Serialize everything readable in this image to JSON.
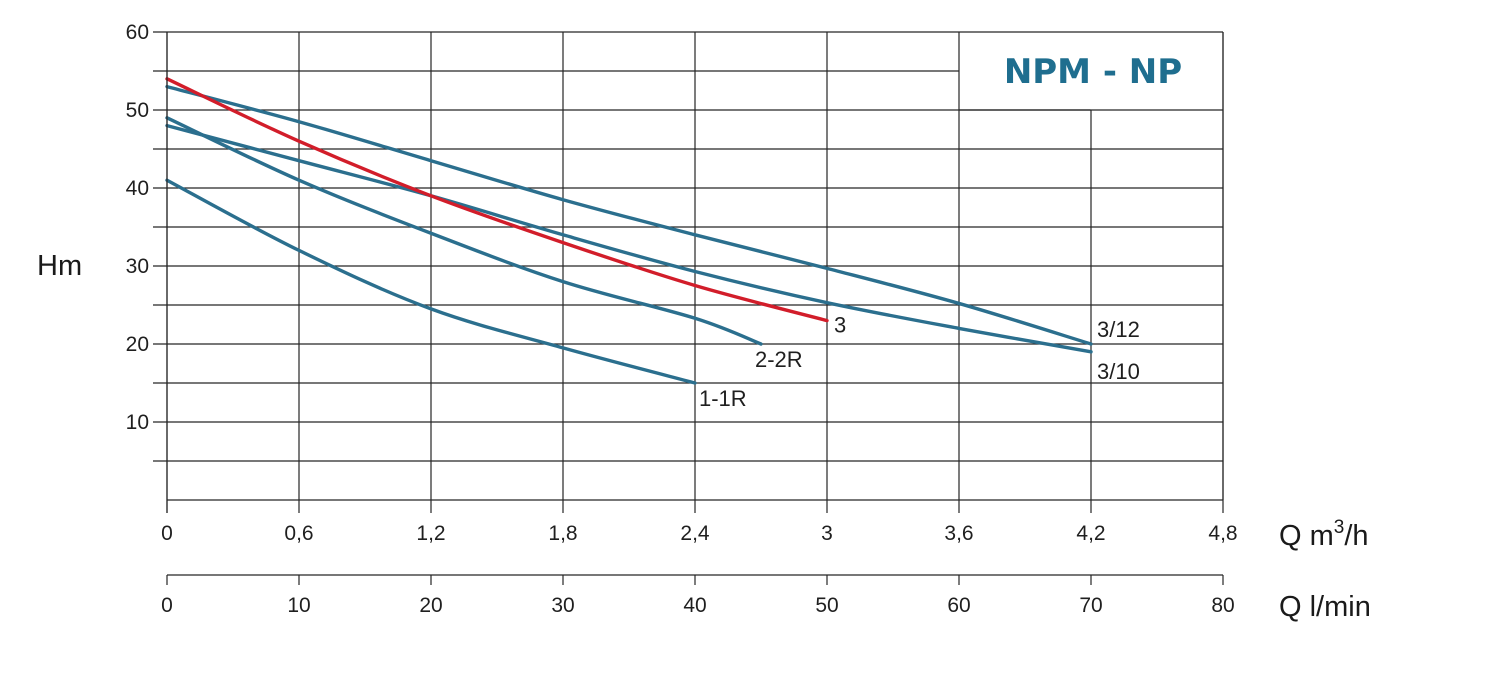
{
  "chart_data": {
    "type": "line",
    "title": "NPM - NP",
    "ylabel": "Hm",
    "xlabel": "Q m³/h",
    "xlabel_secondary": "Q l/min",
    "ylim": [
      0,
      60
    ],
    "xlim": [
      0,
      4.8
    ],
    "xlim_secondary": [
      0,
      80
    ],
    "y_ticks": [
      "10",
      "20",
      "30",
      "40",
      "50",
      "60"
    ],
    "x_ticks": [
      "0",
      "0,6",
      "1,2",
      "1,8",
      "2,4",
      "3",
      "3,6",
      "4,2",
      "4,8"
    ],
    "x_ticks_secondary": [
      "0",
      "10",
      "20",
      "30",
      "40",
      "50",
      "60",
      "70",
      "80"
    ],
    "grid": true,
    "colors": {
      "title": "#1f6e8f",
      "curve": "#2b6f8e",
      "highlight": "#d21d2a"
    },
    "series": [
      {
        "name": "1-1R",
        "color": "#2b6f8e",
        "x": [
          0,
          0.6,
          1.2,
          1.8,
          2.4
        ],
        "y": [
          41,
          32,
          24.5,
          19.5,
          15
        ]
      },
      {
        "name": "2-2R",
        "color": "#2b6f8e",
        "x": [
          0,
          0.6,
          1.2,
          1.8,
          2.4,
          2.7
        ],
        "y": [
          49,
          41,
          34.2,
          28,
          23.3,
          20
        ]
      },
      {
        "name": "3",
        "color": "#d21d2a",
        "x": [
          0,
          0.6,
          1.2,
          1.8,
          2.4,
          3.0
        ],
        "y": [
          54,
          46,
          39,
          33,
          27.5,
          23
        ]
      },
      {
        "name": "3/10",
        "color": "#2b6f8e",
        "x": [
          0,
          0.6,
          1.2,
          1.8,
          2.4,
          3.0,
          3.6,
          4.2
        ],
        "y": [
          48,
          43.5,
          39,
          34,
          29.3,
          25.3,
          22,
          19
        ]
      },
      {
        "name": "3/12",
        "color": "#2b6f8e",
        "x": [
          0,
          0.6,
          1.2,
          1.8,
          2.4,
          3.0,
          3.6,
          4.2
        ],
        "y": [
          53,
          48.5,
          43.5,
          38.5,
          34,
          29.7,
          25.2,
          20
        ]
      }
    ]
  }
}
